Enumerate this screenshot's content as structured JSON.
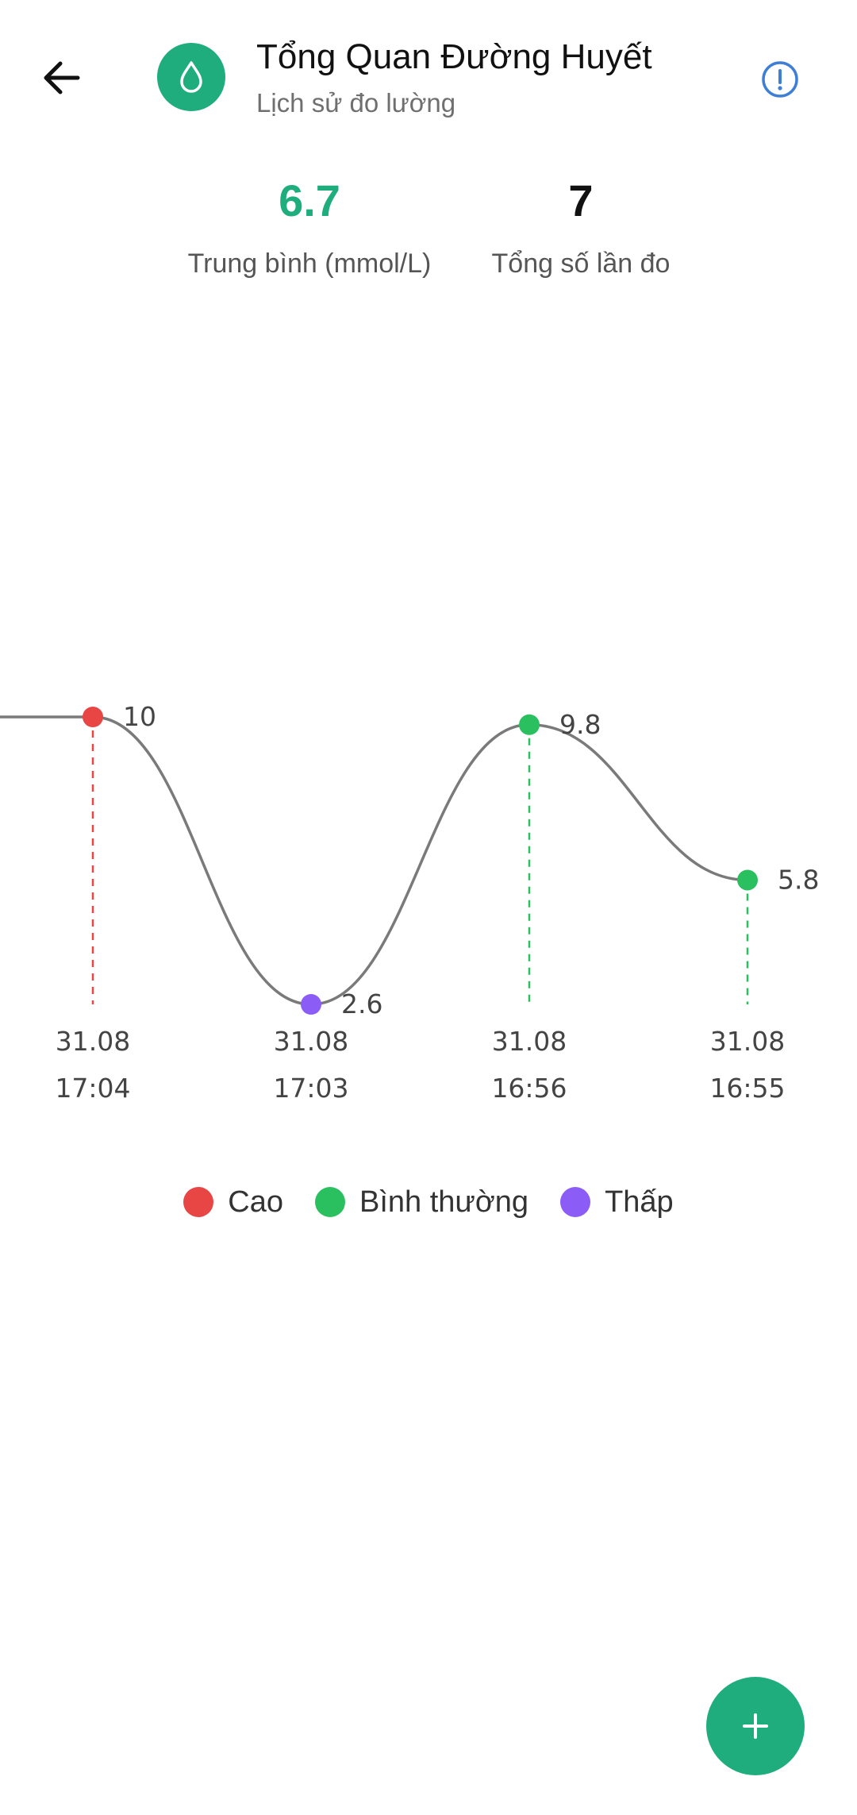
{
  "header": {
    "title": "Tổng Quan Đường Huyết",
    "subtitle": "Lịch sử đo lường",
    "back_icon": "arrow-left-icon",
    "app_icon": "water-drop-icon",
    "info_icon": "info-circle-icon"
  },
  "stats": {
    "average": {
      "value": "6.7",
      "label": "Trung bình (mmol/L)",
      "color": "#1fad7d"
    },
    "count": {
      "value": "7",
      "label": "Tổng số lần đo"
    }
  },
  "chart_data": {
    "type": "line",
    "x": [
      {
        "date": "31.08",
        "time": "17:04"
      },
      {
        "date": "31.08",
        "time": "17:03"
      },
      {
        "date": "31.08",
        "time": "16:56"
      },
      {
        "date": "31.08",
        "time": "16:55"
      }
    ],
    "series": [
      {
        "values": [
          10,
          2.6,
          9.8,
          5.8
        ],
        "labels": [
          "10",
          "2.6",
          "9.8",
          "5.8"
        ],
        "status": [
          "high",
          "low",
          "normal",
          "normal"
        ],
        "line_color": "#7a7a7a"
      }
    ],
    "ylim": [
      2.6,
      10
    ],
    "grid": false,
    "legend": {
      "placement": "bottom-center",
      "items": [
        {
          "key": "high",
          "label": "Cao",
          "color": "#e84545"
        },
        {
          "key": "normal",
          "label": "Bình thường",
          "color": "#2ac060"
        },
        {
          "key": "low",
          "label": "Thấp",
          "color": "#8b5cf6"
        }
      ]
    }
  },
  "fab": {
    "icon": "plus-icon",
    "color": "#1fad7d"
  }
}
